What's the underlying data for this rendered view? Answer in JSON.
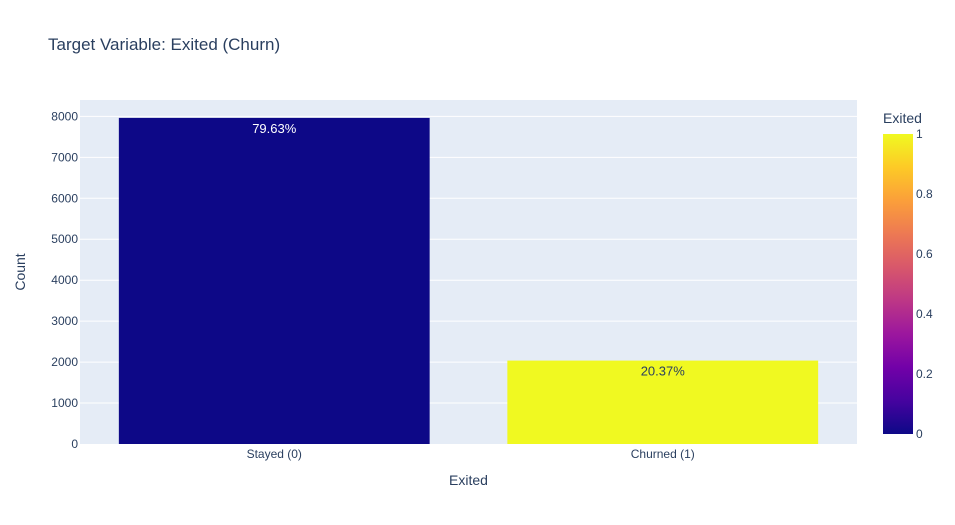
{
  "chart_data": {
    "type": "bar",
    "title": "Target Variable: Exited (Churn)",
    "xlabel": "Exited",
    "ylabel": "Count",
    "categories": [
      "Stayed (0)",
      "Churned (1)"
    ],
    "values": [
      7963,
      2037
    ],
    "color_values": [
      0,
      1
    ],
    "data_labels": [
      "79.63%",
      "20.37%"
    ],
    "ylim": [
      0,
      8400
    ],
    "yticks": [
      0,
      1000,
      2000,
      3000,
      4000,
      5000,
      6000,
      7000,
      8000
    ],
    "grid": true,
    "colorbar": {
      "title": "Exited",
      "range": [
        0,
        1
      ],
      "ticks": [
        0,
        0.2,
        0.4,
        0.6,
        0.8,
        1
      ],
      "tick_labels": [
        "0",
        "0.2",
        "0.4",
        "0.6",
        "0.8",
        "1"
      ],
      "colorscale": [
        "#0d0887",
        "#46039f",
        "#7201a8",
        "#9c179e",
        "#bd3786",
        "#d8576b",
        "#ed7953",
        "#fb9f3a",
        "#fdca26",
        "#f0f921"
      ]
    },
    "colors": {
      "plot_bg": "#e5ecf6",
      "grid": "#ffffff",
      "text": "#2a3f5f"
    }
  }
}
